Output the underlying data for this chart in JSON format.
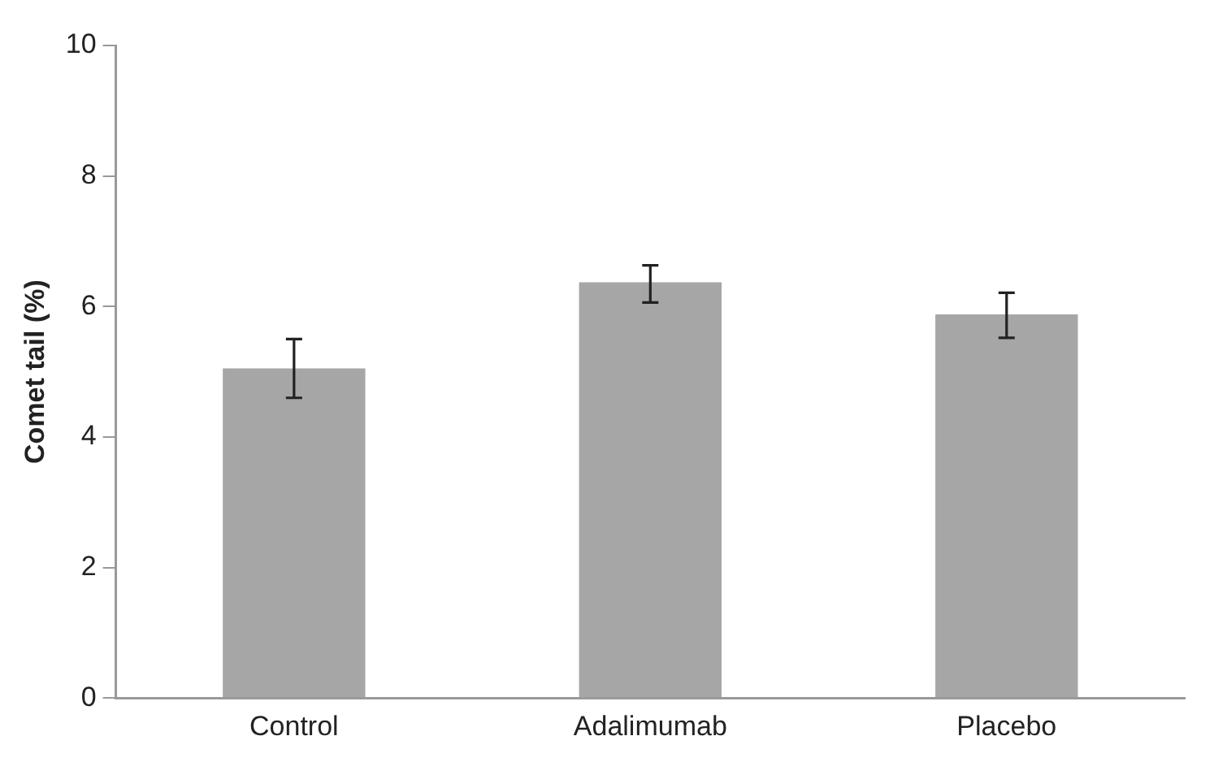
{
  "chart_data": {
    "type": "bar",
    "ylabel": "Comet tail (%)",
    "categories": [
      "Control",
      "Adalimumab",
      "Placebo"
    ],
    "values": [
      5.05,
      6.37,
      5.88
    ],
    "errors": [
      [
        4.6,
        5.5
      ],
      [
        6.06,
        6.63
      ],
      [
        5.52,
        6.21
      ]
    ],
    "color": "#a6a6a6",
    "ylim": [
      0,
      10
    ],
    "yticks": [
      0,
      2,
      4,
      6,
      8,
      10
    ],
    "grid": false,
    "legend": false
  }
}
